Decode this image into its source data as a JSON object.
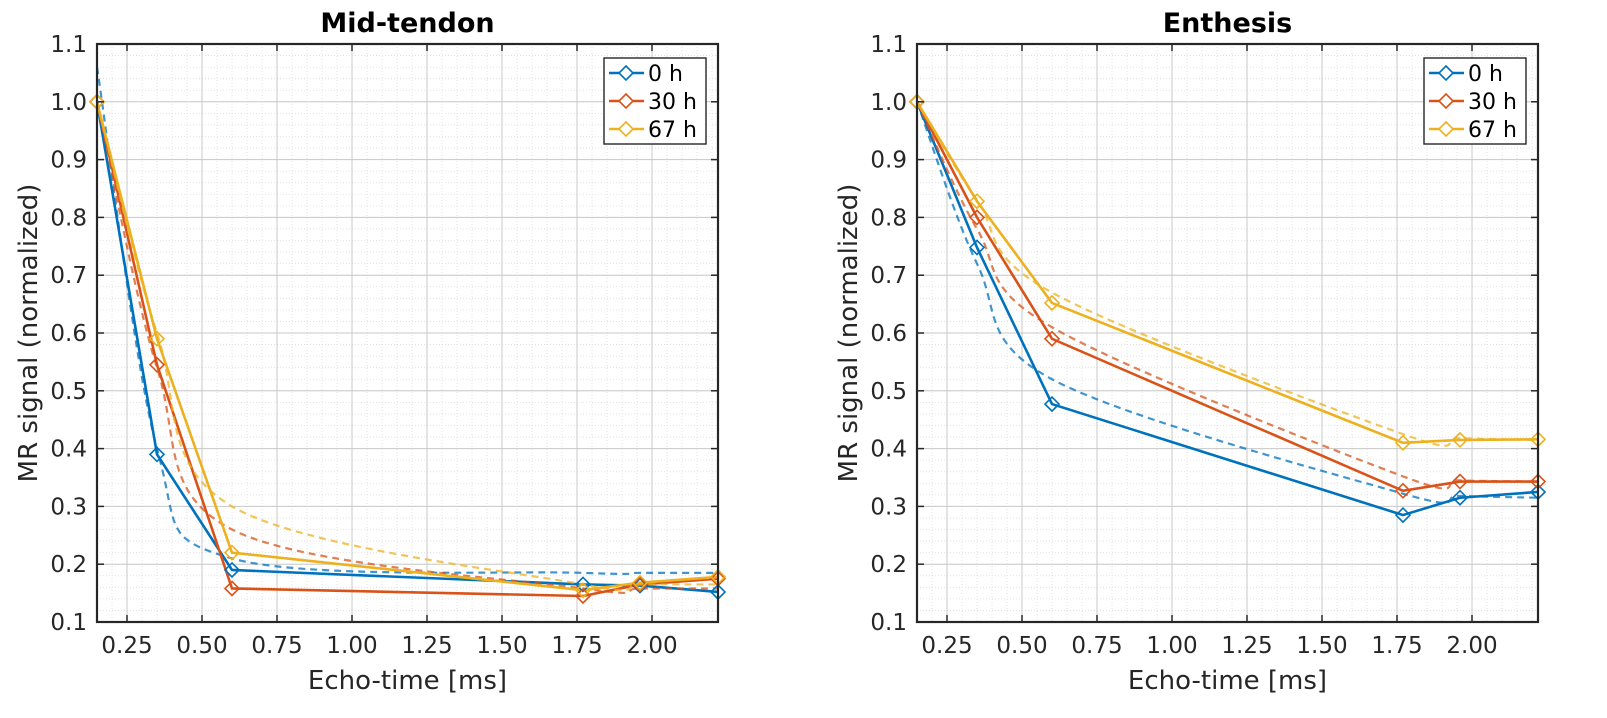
{
  "chart_data": [
    {
      "type": "line",
      "title": "Mid-tendon",
      "xlabel": "Echo-time [ms]",
      "ylabel": "MR signal (normalized)",
      "xlim": [
        0.15,
        2.22
      ],
      "ylim": [
        0.1,
        1.1
      ],
      "xticks": [
        0.25,
        0.5,
        0.75,
        1.0,
        1.25,
        1.5,
        1.75,
        2.0
      ],
      "xtick_labels": [
        "0.25",
        "0.50",
        "0.75",
        "1.00",
        "1.25",
        "1.50",
        "1.75",
        "2.00"
      ],
      "yticks": [
        0.1,
        0.2,
        0.3,
        0.4,
        0.5,
        0.6,
        0.7,
        0.8,
        0.9,
        1.0,
        1.1
      ],
      "ytick_labels": [
        "0.1",
        "0.2",
        "0.3",
        "0.4",
        "0.5",
        "0.6",
        "0.7",
        "0.8",
        "0.9",
        "1.0",
        "1.1"
      ],
      "grid": true,
      "legend": "top-right",
      "x": [
        0.15,
        0.35,
        0.6,
        1.77,
        1.96,
        2.22
      ],
      "series": [
        {
          "name": "0 h",
          "color": "#0072BD",
          "values": [
            1.0,
            0.39,
            0.19,
            0.165,
            0.163,
            0.152
          ],
          "fit_values": [
            1.06,
            0.4,
            0.21,
            0.185,
            0.185,
            0.185
          ]
        },
        {
          "name": "30 h",
          "color": "#D95319",
          "values": [
            1.0,
            0.545,
            0.158,
            0.145,
            0.165,
            0.175
          ],
          "fit_values": [
            1.0,
            0.54,
            0.26,
            0.158,
            0.158,
            0.158
          ]
        },
        {
          "name": "67 h",
          "color": "#EDB120",
          "values": [
            1.0,
            0.59,
            0.22,
            0.155,
            0.168,
            0.178
          ],
          "fit_values": [
            1.0,
            0.6,
            0.3,
            0.165,
            0.165,
            0.165
          ]
        }
      ]
    },
    {
      "type": "line",
      "title": "Enthesis",
      "xlabel": "Echo-time [ms]",
      "ylabel": "MR signal (normalized)",
      "xlim": [
        0.15,
        2.22
      ],
      "ylim": [
        0.1,
        1.1
      ],
      "xticks": [
        0.25,
        0.5,
        0.75,
        1.0,
        1.25,
        1.5,
        1.75,
        2.0
      ],
      "xtick_labels": [
        "0.25",
        "0.50",
        "0.75",
        "1.00",
        "1.25",
        "1.50",
        "1.75",
        "2.00"
      ],
      "yticks": [
        0.1,
        0.2,
        0.3,
        0.4,
        0.5,
        0.6,
        0.7,
        0.8,
        0.9,
        1.0,
        1.1
      ],
      "ytick_labels": [
        "0.1",
        "0.2",
        "0.3",
        "0.4",
        "0.5",
        "0.6",
        "0.7",
        "0.8",
        "0.9",
        "1.0",
        "1.1"
      ],
      "grid": true,
      "legend": "top-right",
      "x": [
        0.15,
        0.35,
        0.6,
        1.77,
        1.96,
        2.22
      ],
      "series": [
        {
          "name": "0 h",
          "color": "#0072BD",
          "values": [
            1.0,
            0.748,
            0.477,
            0.285,
            0.315,
            0.325
          ],
          "fit_values": [
            1.0,
            0.72,
            0.52,
            0.322,
            0.318,
            0.315
          ]
        },
        {
          "name": "30 h",
          "color": "#D95319",
          "values": [
            1.0,
            0.8,
            0.59,
            0.327,
            0.343,
            0.343
          ],
          "fit_values": [
            1.0,
            0.78,
            0.61,
            0.352,
            0.345,
            0.343
          ]
        },
        {
          "name": "67 h",
          "color": "#EDB120",
          "values": [
            1.0,
            0.828,
            0.652,
            0.41,
            0.415,
            0.416
          ],
          "fit_values": [
            1.0,
            0.83,
            0.67,
            0.425,
            0.418,
            0.415
          ]
        }
      ]
    }
  ]
}
